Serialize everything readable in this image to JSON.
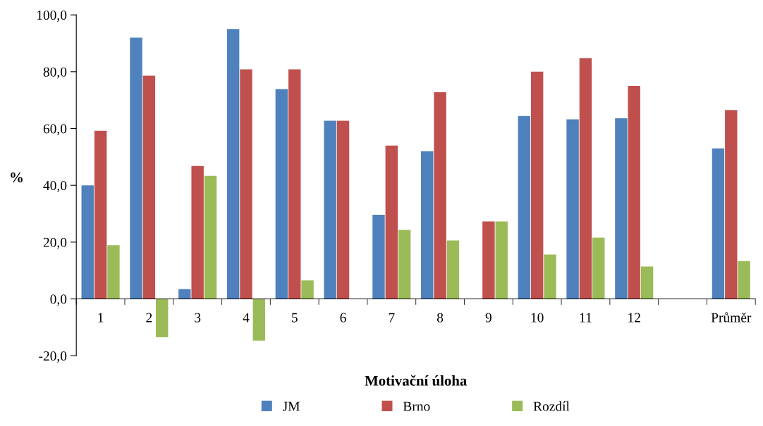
{
  "chart_data": {
    "type": "bar",
    "xlabel": "Motivační úloha",
    "ylabel": "%",
    "categories": [
      "1",
      "2",
      "3",
      "4",
      "5",
      "6",
      "7",
      "8",
      "9",
      "10",
      "11",
      "12",
      null,
      "Průměr"
    ],
    "series": [
      {
        "name": "JM",
        "color": "#4f81bd",
        "values": [
          40.0,
          92.0,
          3.5,
          95.0,
          73.9,
          62.7,
          29.6,
          52.0,
          0,
          64.4,
          63.2,
          63.6,
          null,
          53.0
        ]
      },
      {
        "name": "Brno",
        "color": "#c0504d",
        "values": [
          59.2,
          78.6,
          46.8,
          80.8,
          80.8,
          62.7,
          54.0,
          72.8,
          27.3,
          80.0,
          84.8,
          75.0,
          null,
          66.5
        ]
      },
      {
        "name": "Rozdíl",
        "color": "#9bbb59",
        "values": [
          18.9,
          -13.5,
          43.3,
          -14.7,
          6.5,
          0,
          24.3,
          20.6,
          27.3,
          15.6,
          21.6,
          11.4,
          null,
          13.3
        ]
      }
    ],
    "ylim": [
      -20,
      100
    ],
    "yticks": [
      {
        "value": -20,
        "label": "-20,0"
      },
      {
        "value": 0,
        "label": "0,0"
      },
      {
        "value": 20,
        "label": "20,0"
      },
      {
        "value": 40,
        "label": "40,0"
      },
      {
        "value": 60,
        "label": "60,0"
      },
      {
        "value": 80,
        "label": "80,0"
      },
      {
        "value": 100,
        "label": "100,0"
      }
    ],
    "grid": false,
    "legend": "bottom"
  }
}
